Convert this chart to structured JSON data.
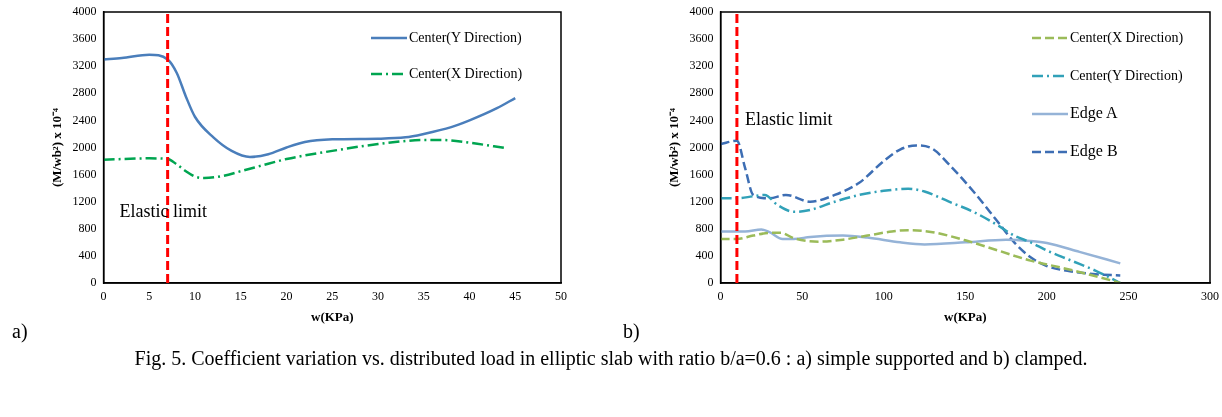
{
  "chart_data": [
    {
      "type": "line",
      "xlabel": "w(KPa)",
      "ylabel": "(M/wb²) x 10⁻⁴",
      "xlim": [
        0,
        50
      ],
      "xticks": [
        0,
        5,
        10,
        15,
        20,
        25,
        30,
        35,
        40,
        45,
        50
      ],
      "ylim": [
        0,
        4000
      ],
      "yticks": [
        0,
        400,
        800,
        1200,
        1600,
        2000,
        2400,
        2800,
        3200,
        3600,
        4000
      ],
      "grid": false,
      "legend": "top right",
      "marker": "none",
      "series": [
        {
          "name": "Center(Y Direction)",
          "color": "#4a7ebb",
          "line_style": "solid",
          "x": [
            0,
            2,
            5,
            7,
            8,
            9,
            10,
            12,
            14,
            16,
            18,
            20,
            22,
            25,
            30,
            33,
            35,
            38,
            40,
            43,
            45
          ],
          "values": [
            3300,
            3320,
            3370,
            3300,
            3100,
            2750,
            2450,
            2150,
            1950,
            1860,
            1900,
            2000,
            2080,
            2120,
            2130,
            2150,
            2200,
            2300,
            2400,
            2580,
            2730
          ]
        },
        {
          "name": "Center(X Direction)",
          "color": "#00a550",
          "line_style": "dashdot",
          "x": [
            0,
            5,
            7,
            8,
            9,
            10,
            11,
            13,
            15,
            18,
            20,
            25,
            30,
            35,
            37,
            40,
            44
          ],
          "values": [
            1820,
            1840,
            1830,
            1750,
            1650,
            1570,
            1550,
            1580,
            1650,
            1760,
            1830,
            1950,
            2050,
            2110,
            2110,
            2070,
            1990
          ]
        }
      ],
      "ref_lines": [
        {
          "axis": "x",
          "value": 7,
          "label": "Elastic limit",
          "color": "#ff0000",
          "line_style": "dashed"
        }
      ],
      "annotations": [
        "a)",
        "Fig. 5. Coefficient variation vs. distributed load in elliptic slab with ratio b/a=0.6 : a) simple supported and b) clamped."
      ]
    },
    {
      "type": "line",
      "xlabel": "w(KPa)",
      "ylabel": "(M/wb²) x 10⁻⁴",
      "xlim": [
        0,
        300
      ],
      "xticks": [
        0,
        50,
        100,
        150,
        200,
        250,
        300
      ],
      "ylim": [
        0,
        4000
      ],
      "yticks": [
        0,
        400,
        800,
        1200,
        1600,
        2000,
        2400,
        2800,
        3200,
        3600,
        4000
      ],
      "grid": false,
      "legend": "top right",
      "marker": "none",
      "series": [
        {
          "name": "Center(X Direction)",
          "color": "#9bbb59",
          "line_style": "dashed",
          "x": [
            0,
            10,
            20,
            30,
            37,
            45,
            60,
            75,
            90,
            105,
            115,
            130,
            150,
            170,
            190,
            210,
            230,
            245
          ],
          "values": [
            650,
            650,
            700,
            740,
            740,
            660,
            610,
            640,
            700,
            760,
            780,
            750,
            630,
            480,
            330,
            220,
            100,
            0
          ]
        },
        {
          "name": "Center(Y Direction)",
          "color": "#31a1b8",
          "line_style": "dashdot",
          "x": [
            0,
            10,
            20,
            27,
            35,
            45,
            55,
            70,
            85,
            100,
            115,
            125,
            140,
            155,
            170,
            180,
            190,
            200,
            215,
            230,
            245
          ],
          "values": [
            1250,
            1250,
            1280,
            1300,
            1150,
            1050,
            1080,
            1200,
            1300,
            1360,
            1390,
            1350,
            1200,
            1050,
            850,
            700,
            600,
            480,
            330,
            180,
            0
          ]
        },
        {
          "name": "Edge A",
          "color": "#95b3d7",
          "line_style": "solid",
          "x": [
            0,
            15,
            25,
            30,
            38,
            45,
            55,
            75,
            90,
            110,
            125,
            150,
            175,
            190,
            200,
            220,
            245
          ],
          "values": [
            760,
            760,
            790,
            750,
            650,
            650,
            680,
            700,
            670,
            600,
            570,
            600,
            640,
            620,
            590,
            460,
            290
          ]
        },
        {
          "name": "Edge B",
          "color": "#3d6eb4",
          "line_style": "dashed",
          "x": [
            0,
            10,
            15,
            20,
            30,
            40,
            55,
            70,
            85,
            100,
            110,
            120,
            130,
            140,
            155,
            170,
            180,
            190,
            200,
            215,
            230,
            245
          ],
          "values": [
            2050,
            2100,
            1700,
            1300,
            1250,
            1300,
            1200,
            1300,
            1480,
            1800,
            1970,
            2030,
            1980,
            1750,
            1350,
            900,
            600,
            380,
            250,
            170,
            130,
            110
          ]
        }
      ],
      "ref_lines": [
        {
          "axis": "x",
          "value": 10,
          "label": "Elastic limit",
          "color": "#ff0000",
          "line_style": "dashed"
        }
      ],
      "annotations": [
        "b)"
      ]
    }
  ]
}
